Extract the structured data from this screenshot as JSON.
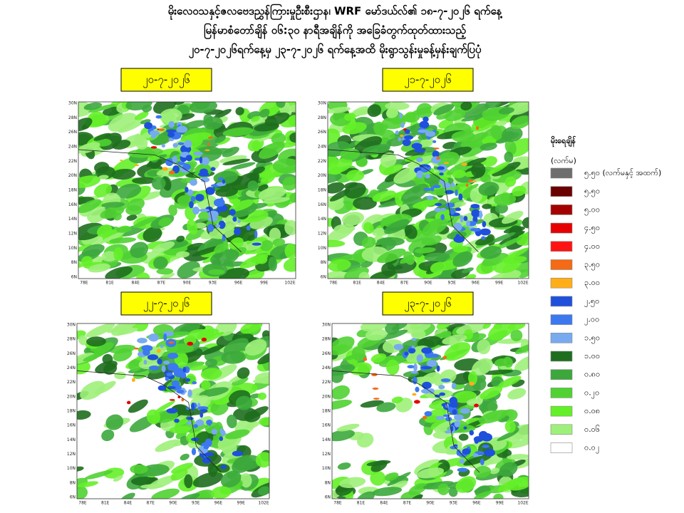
{
  "title": [
    "မိုးလေဝသနှင့်ဇလဗေဒညွှန်ကြားမှုဦးစီးဌာန၊ WRF မော်ဒယ်လ်၏ ၁၈-၇-၂၀၂၆ ရက်နေ့",
    "မြန်မာစံတော်ချိန် ၀၆:၃၀ နာရီအချိန်ကို အခြေခံတွက်ထုတ်ထားသည့်",
    "၂၀-၇-၂၀၂၆ရက်နေ့မှ ၂၃-၇-၂၀၂၆ ရက်နေ့အထိ မိုးရွာသွန်းမှုခန့်မှန်းချက်ပြပုံ"
  ],
  "panels": [
    {
      "date": "၂၀-၇-၂၀၂၆"
    },
    {
      "date": "၂၁-၇-၂၀၂၆"
    },
    {
      "date": "၂၂-၇-၂၀၂၆"
    },
    {
      "date": "၂၃-၇-၂၀၂၆"
    }
  ],
  "map_axes": {
    "latitudes": [
      "30N",
      "28N",
      "26N",
      "24N",
      "22N",
      "20N",
      "18N",
      "16N",
      "14N",
      "12N",
      "10N",
      "8N",
      "6N"
    ],
    "longitudes": [
      "78E",
      "81E",
      "84E",
      "87E",
      "90E",
      "93E",
      "96E",
      "99E",
      "102E"
    ]
  },
  "legend": {
    "title": "မိုးရေချိန်",
    "unit": "(လက်မ)",
    "items": [
      {
        "label": "၅.၅၀ (လက်မနှင့် အထက်)",
        "color": "#6e6e6e"
      },
      {
        "label": "၅.၅၀",
        "color": "#6b0000"
      },
      {
        "label": "၅.၀၀",
        "color": "#a50000"
      },
      {
        "label": "၄.၅၀",
        "color": "#e60000"
      },
      {
        "label": "၄.၀၀",
        "color": "#ff1414"
      },
      {
        "label": "၃.၅၀",
        "color": "#f56a14"
      },
      {
        "label": "၃.၀၀",
        "color": "#ffae1a"
      },
      {
        "label": "၂.၅၀",
        "color": "#1e50dc"
      },
      {
        "label": "၂.၀၀",
        "color": "#3c78f0"
      },
      {
        "label": "၁.၅၀",
        "color": "#78aaf0"
      },
      {
        "label": "၁.၀၀",
        "color": "#1e6e1e"
      },
      {
        "label": "၀.၈၀",
        "color": "#3ca83c"
      },
      {
        "label": "၀.၂၀",
        "color": "#50d232"
      },
      {
        "label": "၀.၀၈",
        "color": "#64f028"
      },
      {
        "label": "၀.၀၆",
        "color": "#9ef07a"
      },
      {
        "label": "၀.၀၂",
        "color": "#ffffff"
      }
    ]
  }
}
